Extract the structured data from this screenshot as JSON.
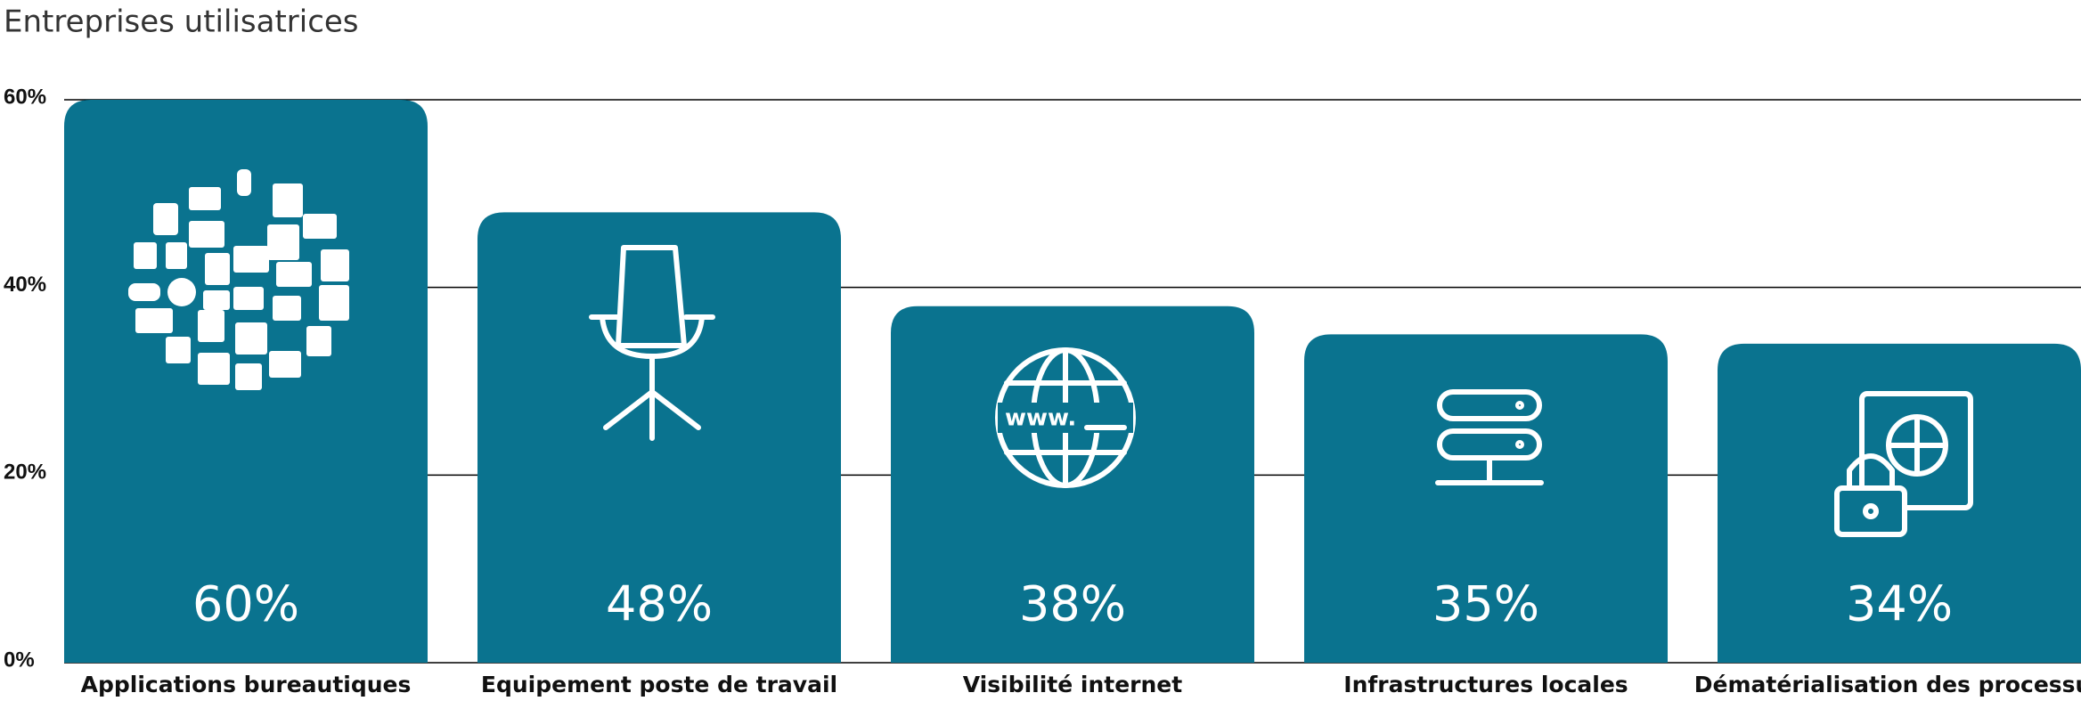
{
  "chart_data": {
    "type": "bar",
    "title": "Entreprises utilisatrices",
    "categories": [
      "Applications bureautiques",
      "Equipement poste de travail",
      "Visibilité internet",
      "Infrastructures locales",
      "Dématérialisation des processus"
    ],
    "values": [
      60,
      48,
      38,
      35,
      34
    ],
    "value_labels": [
      "60%",
      "48%",
      "38%",
      "35%",
      "34%"
    ],
    "color": "#0a738f",
    "ylim": [
      0,
      60
    ],
    "yticks": [
      {
        "value": 0,
        "label": "0%"
      },
      {
        "value": 20,
        "label": "20%"
      },
      {
        "value": 40,
        "label": "40%"
      },
      {
        "value": 60,
        "label": "60%"
      }
    ],
    "grid": true
  }
}
